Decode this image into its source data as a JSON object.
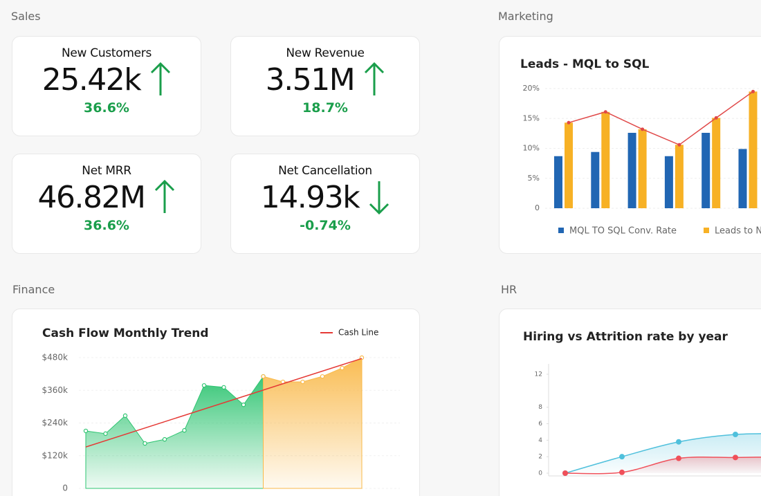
{
  "sales": {
    "title": "Sales",
    "kpis": [
      {
        "label": "New Customers",
        "value": "25.42k",
        "change": "36.6%",
        "trend": "up",
        "color": "#1a9e4b"
      },
      {
        "label": "New Revenue",
        "value": "3.51M",
        "change": "18.7%",
        "trend": "up",
        "color": "#1a9e4b"
      },
      {
        "label": "Net MRR",
        "value": "46.82M",
        "change": "36.6%",
        "trend": "up",
        "color": "#1a9e4b"
      },
      {
        "label": "Net Cancellation",
        "value": "14.93k",
        "change": "-0.74%",
        "trend": "down",
        "color": "#1a9e4b"
      }
    ]
  },
  "marketing": {
    "title": "Marketing",
    "chart": {
      "type": "bar",
      "title": "Leads - MQL to SQL",
      "ylim": [
        0,
        20
      ],
      "yticks": [
        0,
        {
          "value": 5,
          "label": "5%"
        },
        {
          "value": 10,
          "label": "10%"
        },
        {
          "value": 15,
          "label": "15%"
        },
        {
          "value": 20,
          "label": "20%"
        }
      ],
      "grid": true,
      "series": [
        {
          "name": "MQL TO SQL Conv. Rate",
          "color": "#2166b3",
          "values": [
            8.7,
            9.4,
            12.6,
            8.7,
            12.6,
            9.9
          ]
        },
        {
          "name": "Leads to Ne",
          "color": "#f7b125",
          "values": [
            14.3,
            16.1,
            13.2,
            10.6,
            15.1,
            19.5
          ]
        }
      ],
      "line": {
        "color": "#e04848",
        "series_index": 1
      }
    }
  },
  "finance": {
    "title": "Finance",
    "chart": {
      "type": "area",
      "title": "Cash Flow Monthly Trend",
      "ylim": [
        0,
        480000
      ],
      "yticks": [
        0,
        {
          "value": 120000,
          "label": "$120k"
        },
        {
          "value": 240000,
          "label": "$240k"
        },
        {
          "value": 360000,
          "label": "$360k"
        },
        {
          "value": 480000,
          "label": "$480k"
        }
      ],
      "grid": true,
      "series": [
        {
          "color": "#2ec471",
          "values": [
            211000,
            201000,
            267000,
            165000,
            180000,
            213000,
            378000,
            371000,
            307000,
            411000,
            null,
            null,
            null,
            null,
            null
          ]
        },
        {
          "color": "#f9b94a",
          "values": [
            null,
            null,
            null,
            null,
            null,
            null,
            null,
            null,
            null,
            411000,
            391000,
            391000,
            411000,
            442000,
            480000
          ]
        }
      ],
      "trend": {
        "name": "Cash Line",
        "color": "#e53935",
        "x": [
          0,
          14
        ],
        "values": [
          152000,
          477000
        ]
      }
    }
  },
  "hr": {
    "title": "HR",
    "chart": {
      "type": "smooth-area",
      "title": "Hiring vs Attrition rate by year",
      "ylim": [
        0,
        12
      ],
      "yticks": [
        0,
        2,
        4,
        6,
        8,
        12
      ],
      "series": [
        {
          "color": "#4fc0dc",
          "values": [
            0,
            2,
            3.8,
            4.7,
            4.8
          ]
        },
        {
          "color": "#f0505a",
          "values": [
            0,
            0.1,
            1.8,
            1.9,
            2.0
          ]
        }
      ]
    }
  }
}
